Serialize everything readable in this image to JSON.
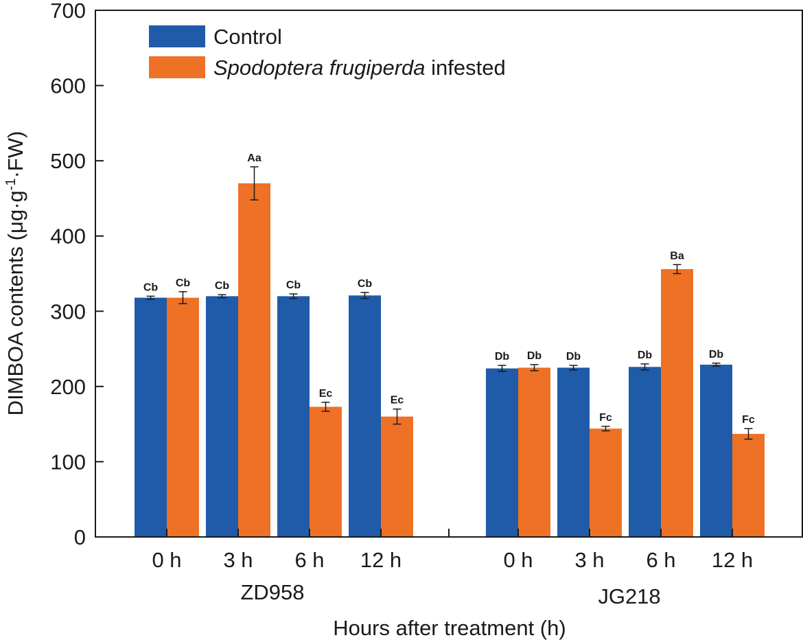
{
  "chart_data": {
    "type": "bar",
    "title": "",
    "xlabel": "Hours after treatment (h)",
    "ylabel": "DIMBOA contents (μg·g⁻¹·FW)",
    "ylabel_parts": {
      "main": "DIMBOA contents (μg·g",
      "sup": "-1",
      "tail": "·FW)"
    },
    "ylim": [
      0,
      700
    ],
    "yticks": [
      0,
      100,
      200,
      300,
      400,
      500,
      600,
      700
    ],
    "groups": [
      "ZD958",
      "JG218"
    ],
    "categories": [
      "0 h",
      "3 h",
      "6 h",
      "12 h"
    ],
    "series": [
      {
        "name": "Control",
        "color": "#1f5ba8",
        "values": {
          "ZD958": [
            318,
            320,
            320,
            321
          ],
          "JG218": [
            224,
            225,
            226,
            229
          ]
        },
        "errors": {
          "ZD958": [
            2,
            2,
            3,
            4
          ],
          "JG218": [
            4,
            3,
            4,
            2
          ]
        },
        "labels": {
          "ZD958": [
            "Cb",
            "Cb",
            "Cb",
            "Cb"
          ],
          "JG218": [
            "Db",
            "Db",
            "Db",
            "Db"
          ]
        }
      },
      {
        "name": "Spodoptera frugiperda infested",
        "name_italic": "Spodoptera frugiperda",
        "name_rest": " infested",
        "color": "#ee7126",
        "values": {
          "ZD958": [
            318,
            470,
            173,
            160
          ],
          "JG218": [
            225,
            144,
            356,
            137
          ]
        },
        "errors": {
          "ZD958": [
            8,
            22,
            6,
            10
          ],
          "JG218": [
            4,
            3,
            6,
            7
          ]
        },
        "labels": {
          "ZD958": [
            "Cb",
            "Aa",
            "Ec",
            "Ec"
          ],
          "JG218": [
            "Db",
            "Fc",
            "Ba",
            "Fc"
          ]
        }
      }
    ],
    "legend_position": "top-left"
  }
}
